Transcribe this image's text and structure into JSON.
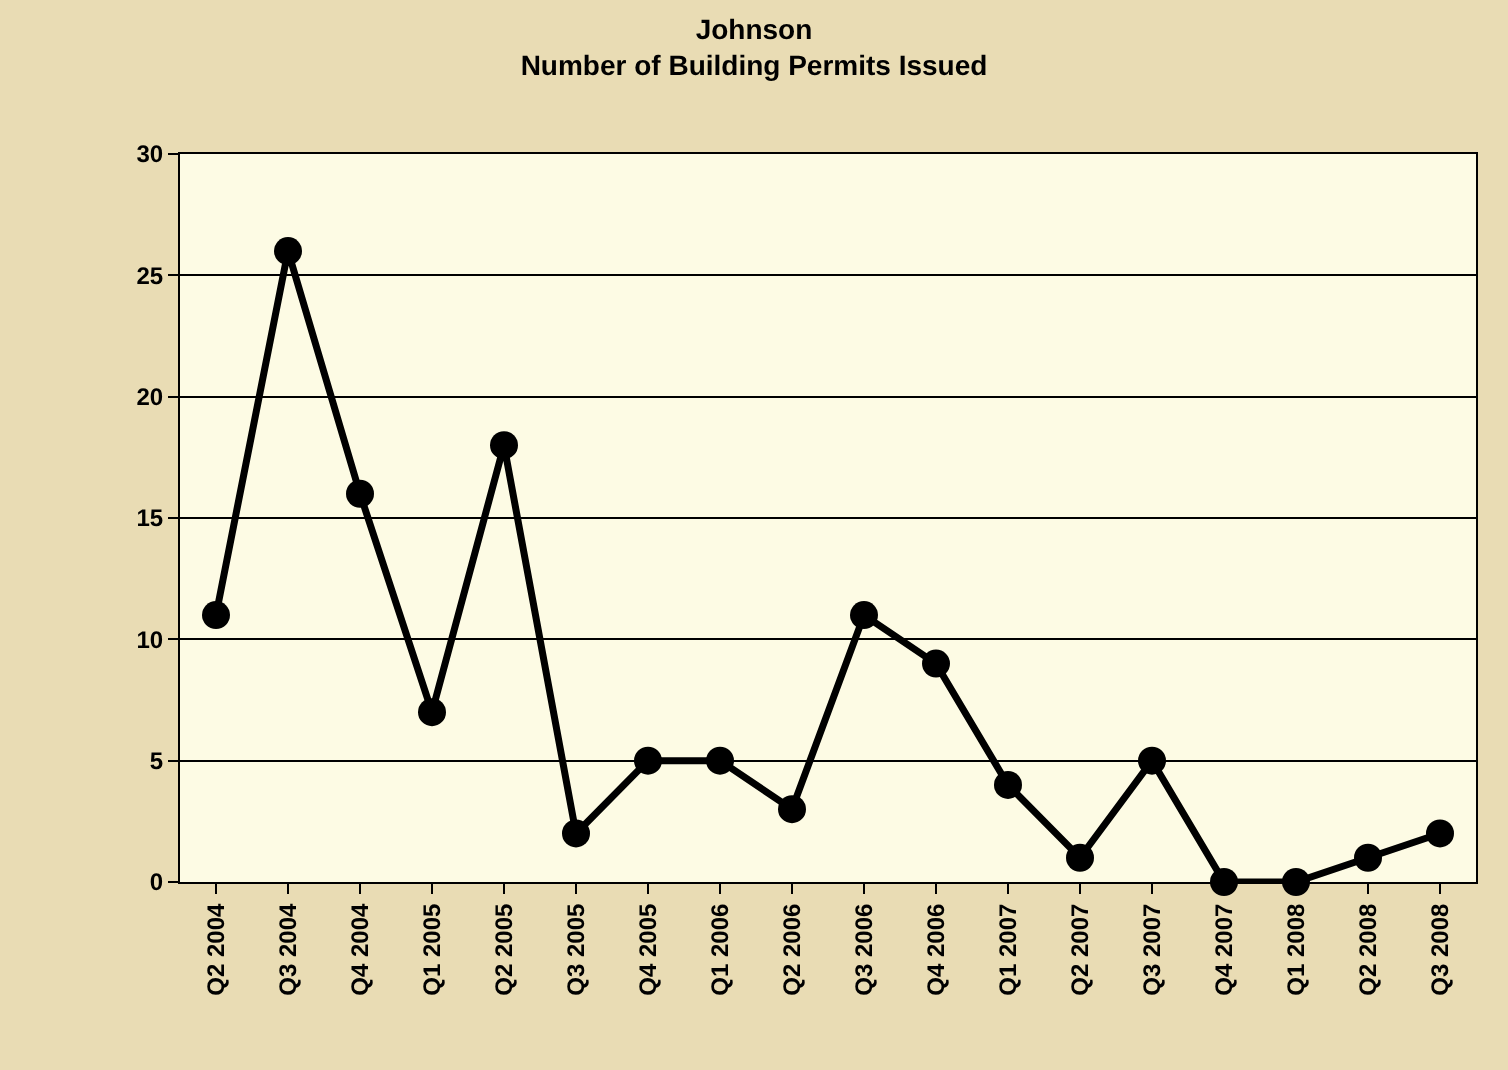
{
  "chart_data": {
    "type": "line",
    "title": "Johnson\nNumber of Building Permits Issued",
    "categories": [
      "Q2 2004",
      "Q3 2004",
      "Q4 2004",
      "Q1 2005",
      "Q2 2005",
      "Q3 2005",
      "Q4 2005",
      "Q1 2006",
      "Q2 2006",
      "Q3 2006",
      "Q4 2006",
      "Q1 2007",
      "Q2 2007",
      "Q3 2007",
      "Q4 2007",
      "Q1 2008",
      "Q2 2008",
      "Q3 2008"
    ],
    "values": [
      11,
      26,
      16,
      7,
      18,
      2,
      5,
      5,
      3,
      11,
      9,
      4,
      1,
      5,
      0,
      0,
      1,
      2
    ],
    "color": "#000000",
    "marker": "circle",
    "line_style": "solid",
    "ylim": [
      0,
      30
    ],
    "yticks": [
      0,
      5,
      10,
      15,
      20,
      25,
      30
    ],
    "grid": "y",
    "legend": false
  }
}
